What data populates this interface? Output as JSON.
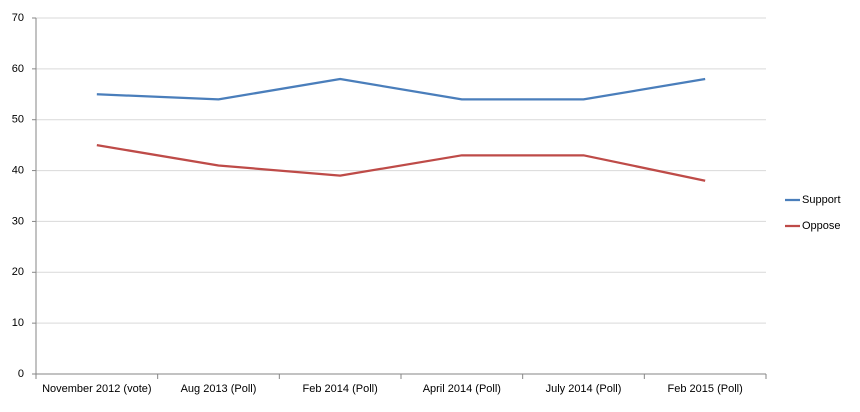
{
  "chart_data": {
    "type": "line",
    "categories": [
      "November 2012 (vote)",
      "Aug 2013 (Poll)",
      "Feb 2014 (Poll)",
      "April 2014 (Poll)",
      "July 2014 (Poll)",
      "Feb 2015 (Poll)"
    ],
    "series": [
      {
        "name": "Support",
        "color": "#4a7ebb",
        "values": [
          55,
          54,
          58,
          54,
          54,
          58
        ]
      },
      {
        "name": "Oppose",
        "color": "#be4b48",
        "values": [
          45,
          41,
          39,
          43,
          43,
          38
        ]
      }
    ],
    "ylim": [
      0,
      70
    ],
    "yticks": [
      0,
      10,
      20,
      30,
      40,
      50,
      60,
      70
    ],
    "grid": true,
    "legend": "right"
  }
}
